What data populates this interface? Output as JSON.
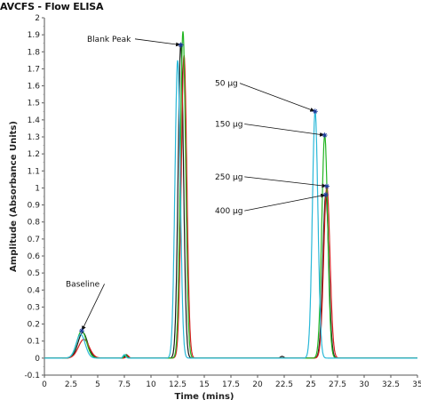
{
  "chart_data": {
    "type": "line",
    "title": "AVCFS - Flow ELISA",
    "xlabel": "Time (mins)",
    "ylabel": "Amplitude (Absorbance Units)",
    "xlim": [
      0,
      35
    ],
    "ylim": [
      -0.1,
      2
    ],
    "x_ticks": [
      "0",
      "2.5",
      "5",
      "7.5",
      "10",
      "12.5",
      "15",
      "17.5",
      "20",
      "22.5",
      "25",
      "27.5",
      "30",
      "32.5",
      "35"
    ],
    "y_ticks": [
      "-0.1",
      "0",
      "0.1",
      "0.2",
      "0.3",
      "0.4",
      "0.5",
      "0.6",
      "0.7",
      "0.8",
      "0.9",
      "1",
      "1.1",
      "1.2",
      "1.3",
      "1.4",
      "1.5",
      "1.6",
      "1.7",
      "1.8",
      "1.9",
      "2"
    ],
    "grid": false,
    "series": [
      {
        "color": "#1a1a1a",
        "peaks": [
          {
            "center": 3.6,
            "height": 0.15,
            "width": 0.9
          },
          {
            "center": 7.7,
            "height": 0.02,
            "width": 0.25
          },
          {
            "center": 12.8,
            "height": 1.85,
            "width": 0.5
          },
          {
            "center": 22.3,
            "height": 0.01,
            "width": 0.3
          },
          {
            "center": 26.4,
            "height": 0.96,
            "width": 0.55
          }
        ]
      },
      {
        "color": "#d62020",
        "peaks": [
          {
            "center": 3.7,
            "height": 0.11,
            "width": 1.0
          },
          {
            "center": 7.8,
            "height": 0.015,
            "width": 0.25
          },
          {
            "center": 13.1,
            "height": 1.78,
            "width": 0.52
          },
          {
            "center": 26.5,
            "height": 1.01,
            "width": 0.58
          }
        ]
      },
      {
        "color": "#22b522",
        "peaks": [
          {
            "center": 3.5,
            "height": 0.16,
            "width": 0.9
          },
          {
            "center": 7.6,
            "height": 0.02,
            "width": 0.25
          },
          {
            "center": 13.0,
            "height": 1.92,
            "width": 0.5
          },
          {
            "center": 26.3,
            "height": 1.31,
            "width": 0.55
          }
        ]
      },
      {
        "color": "#2ab8d8",
        "peaks": [
          {
            "center": 3.4,
            "height": 0.14,
            "width": 0.85
          },
          {
            "center": 7.5,
            "height": 0.02,
            "width": 0.25
          },
          {
            "center": 12.5,
            "height": 1.75,
            "width": 0.5
          },
          {
            "center": 25.4,
            "height": 1.45,
            "width": 0.52
          }
        ]
      }
    ],
    "annotations": [
      {
        "text": "Baseline",
        "x": 2.0,
        "y": 0.42,
        "target_x": 3.5,
        "target_y": 0.16
      },
      {
        "text": "Blank Peak",
        "x": 4.0,
        "y": 1.86,
        "target_x": 12.8,
        "target_y": 1.84
      },
      {
        "text": "50 µg",
        "x": 16.0,
        "y": 1.6,
        "target_x": 25.4,
        "target_y": 1.45
      },
      {
        "text": "150 µg",
        "x": 16.0,
        "y": 1.36,
        "target_x": 26.3,
        "target_y": 1.31
      },
      {
        "text": "250 µg",
        "x": 16.0,
        "y": 1.05,
        "target_x": 26.5,
        "target_y": 1.01
      },
      {
        "text": "400 µg",
        "x": 16.0,
        "y": 0.85,
        "target_x": 26.4,
        "target_y": 0.96
      }
    ]
  }
}
